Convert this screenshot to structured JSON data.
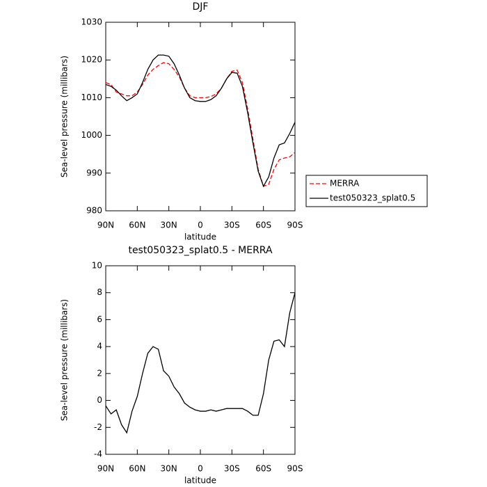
{
  "chart_data": [
    {
      "type": "line",
      "title": "DJF",
      "xlabel": "latitude",
      "ylabel": "Sea-level pressure (millibars)",
      "x": [
        90,
        85,
        80,
        75,
        70,
        65,
        60,
        55,
        50,
        45,
        40,
        35,
        30,
        25,
        20,
        15,
        10,
        5,
        0,
        -5,
        -10,
        -15,
        -20,
        -25,
        -30,
        -35,
        -40,
        -45,
        -50,
        -55,
        -60,
        -65,
        -70,
        -75,
        -80,
        -85,
        -90
      ],
      "series": [
        {
          "name": "MERRA",
          "color": "#ff0000",
          "line_style": "dashed",
          "values": [
            1014,
            1013.5,
            1011.5,
            1011,
            1010.5,
            1010.5,
            1011.5,
            1013.5,
            1016,
            1017.5,
            1018.5,
            1019.3,
            1019,
            1017.5,
            1015.5,
            1012.5,
            1010.5,
            1010,
            1010,
            1010,
            1010.3,
            1011,
            1012.5,
            1015,
            1017,
            1017.3,
            1014,
            1007,
            999,
            991,
            986.5,
            987,
            991,
            993.5,
            994,
            994.3,
            995.5
          ]
        },
        {
          "name": "test050323_splat0.5",
          "color": "#000000",
          "line_style": "solid",
          "values": [
            1013.5,
            1013,
            1012,
            1010.5,
            1009.2,
            1010,
            1011,
            1014,
            1017.5,
            1020,
            1021.3,
            1021.3,
            1021,
            1019,
            1016,
            1012.5,
            1010,
            1009.2,
            1009,
            1009,
            1009.5,
            1010.5,
            1012.5,
            1015,
            1016.7,
            1016.5,
            1013,
            1006,
            998,
            990.5,
            986.5,
            989,
            994,
            997.5,
            998,
            1000.5,
            1003.5
          ]
        }
      ],
      "xlim": [
        90,
        -90
      ],
      "xticks": [
        {
          "value": 90,
          "label": "90N"
        },
        {
          "value": 60,
          "label": "60N"
        },
        {
          "value": 30,
          "label": "30N"
        },
        0,
        {
          "value": -30,
          "label": "30S"
        },
        {
          "value": -60,
          "label": "60S"
        },
        {
          "value": -90,
          "label": "90S"
        }
      ],
      "ylim": [
        980,
        1030
      ],
      "yticks": [
        980,
        990,
        1000,
        1010,
        1020,
        1030
      ],
      "legend": "right"
    },
    {
      "type": "line",
      "title": "test050323_splat0.5 - MERRA",
      "xlabel": "latitude",
      "ylabel": "Sea-level pressure (millibars)",
      "x": [
        90,
        85,
        80,
        75,
        70,
        65,
        60,
        55,
        50,
        45,
        40,
        35,
        30,
        25,
        20,
        15,
        10,
        5,
        0,
        -5,
        -10,
        -15,
        -20,
        -25,
        -30,
        -35,
        -40,
        -45,
        -50,
        -55,
        -60,
        -65,
        -70,
        -75,
        -80,
        -85,
        -90
      ],
      "color": "#000000",
      "values": [
        -0.4,
        -1.0,
        -0.7,
        -1.8,
        -2.4,
        -0.8,
        0.3,
        2,
        3.5,
        4,
        3.8,
        2.2,
        1.8,
        1,
        0.5,
        -0.2,
        -0.5,
        -0.7,
        -0.8,
        -0.8,
        -0.7,
        -0.8,
        -0.7,
        -0.6,
        -0.6,
        -0.6,
        -0.6,
        -0.8,
        -1.1,
        -1.1,
        0.5,
        3,
        4.4,
        4.5,
        4,
        6.5,
        8
      ],
      "xlim": [
        90,
        -90
      ],
      "xticks": [
        {
          "value": 90,
          "label": "90N"
        },
        {
          "value": 60,
          "label": "60N"
        },
        {
          "value": 30,
          "label": "30N"
        },
        0,
        {
          "value": -30,
          "label": "30S"
        },
        {
          "value": -60,
          "label": "60S"
        },
        {
          "value": -90,
          "label": "90S"
        }
      ],
      "ylim": [
        -4,
        10
      ],
      "yticks": [
        -4,
        -2,
        0,
        2,
        4,
        6,
        8,
        10
      ]
    }
  ]
}
